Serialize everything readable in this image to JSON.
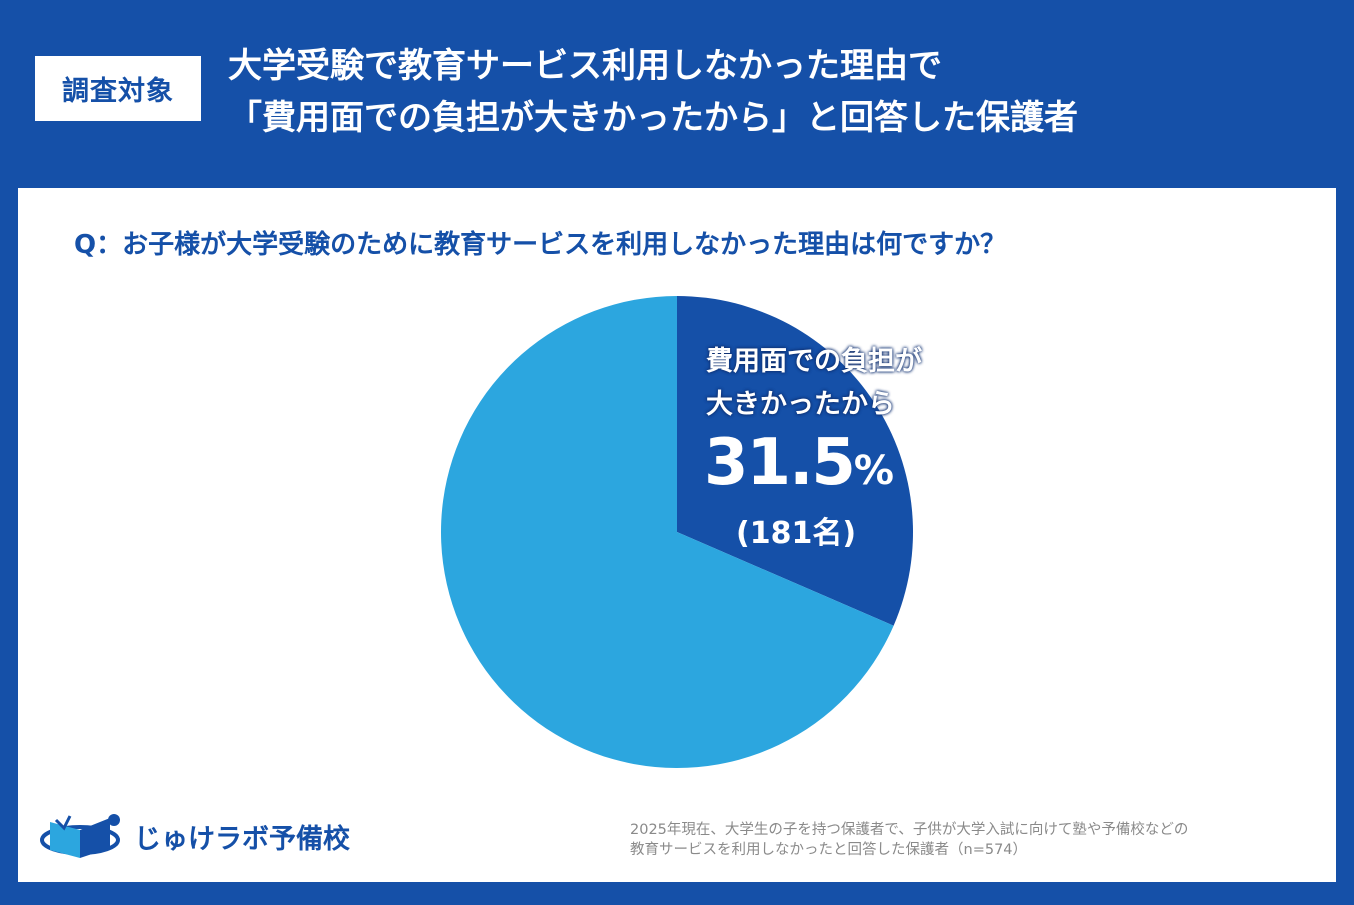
{
  "header": {
    "badge": "調査対象",
    "title_line1": "大学受験で教育サービス利用しなかった理由で",
    "title_line2": "「費用面での負担が大きかったから」と回答した保護者"
  },
  "question": "Q：お子様が大学受験のために教育サービスを利用しなかった理由は何ですか？",
  "chart_data": {
    "type": "pie",
    "slices": [
      {
        "label_line1": "費用面での負担が",
        "label_line2": "大きかったから",
        "value": 31.5,
        "value_text": "31.5",
        "unit": "%",
        "count_text": "(181名)",
        "color": "#1550a8"
      },
      {
        "value": 68.5,
        "color": "#2ca6df"
      }
    ]
  },
  "logo": {
    "text": "じゅけラボ予備校"
  },
  "footnote": {
    "line1": "2025年現在、大学生の子を持つ保護者で、子供が大学入試に向けて塾や予備校などの",
    "line2": "教育サービスを利用しなかったと回答した保護者（n=574）"
  },
  "colors": {
    "background": "#1550a8",
    "panel": "#ffffff",
    "accent": "#2ca6df"
  }
}
